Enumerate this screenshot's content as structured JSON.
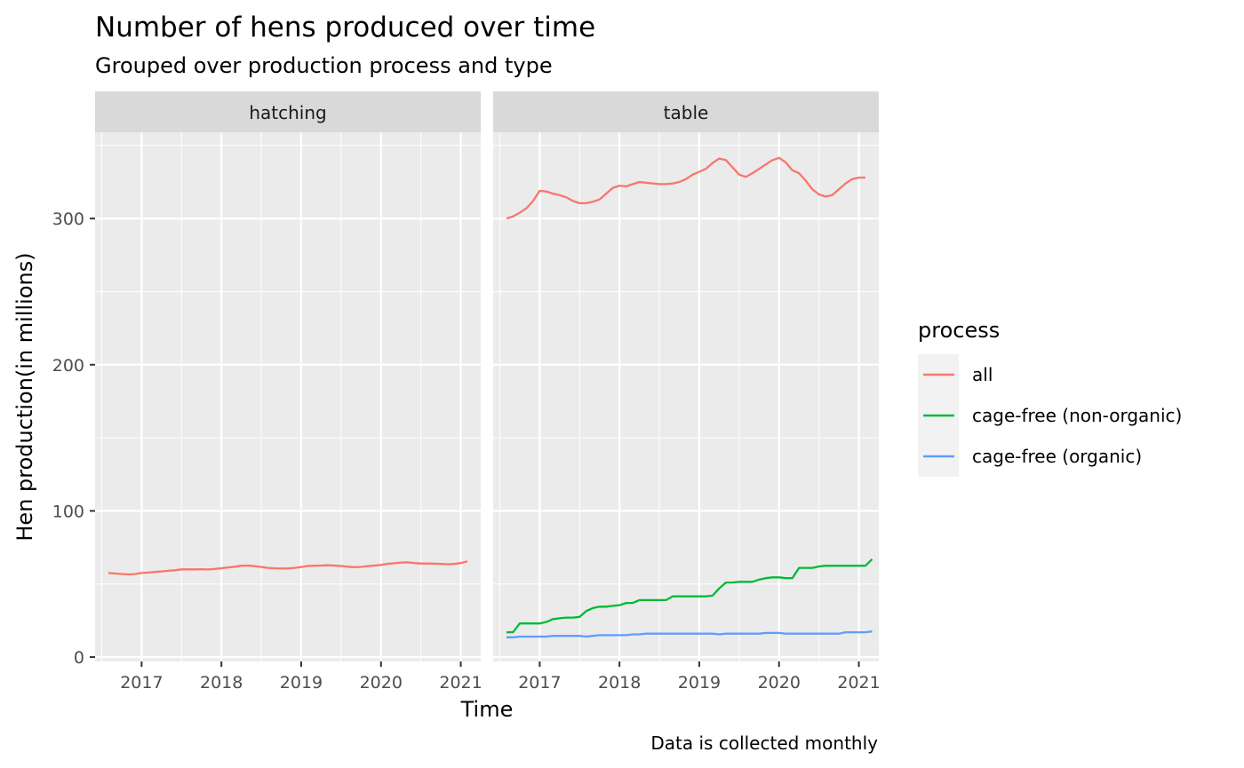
{
  "chart_data": {
    "type": "line",
    "title": "Number of hens produced over time",
    "subtitle": "Grouped over production process and type",
    "caption": "Data is collected monthly",
    "xlabel": "Time",
    "ylabel": "Hen production(in millions)",
    "x_ticks": [
      "2017",
      "2018",
      "2019",
      "2020",
      "2021"
    ],
    "y_ticks": [
      0,
      100,
      200,
      300
    ],
    "xlim": [
      "2016-06",
      "2021-04"
    ],
    "ylim": [
      -3,
      359
    ],
    "grid": true,
    "legend": {
      "title": "process",
      "position": "right",
      "entries": [
        "all",
        "cage-free (non-organic)",
        "cage-free (organic)"
      ]
    },
    "colors": {
      "all": "#F8766D",
      "cage-free (non-organic)": "#00BA38",
      "cage-free (organic)": "#619CFF",
      "panel_bg": "#EBEBEB",
      "strip_bg": "#D9D9D9"
    },
    "facets": [
      {
        "label": "hatching",
        "series": [
          {
            "name": "all",
            "x": [
              "2016-08",
              "2016-09",
              "2016-10",
              "2016-11",
              "2016-12",
              "2017-01",
              "2017-02",
              "2017-03",
              "2017-04",
              "2017-05",
              "2017-06",
              "2017-07",
              "2017-08",
              "2017-09",
              "2017-10",
              "2017-11",
              "2017-12",
              "2018-01",
              "2018-02",
              "2018-03",
              "2018-04",
              "2018-05",
              "2018-06",
              "2018-07",
              "2018-08",
              "2018-09",
              "2018-10",
              "2018-11",
              "2018-12",
              "2019-01",
              "2019-02",
              "2019-03",
              "2019-04",
              "2019-05",
              "2019-06",
              "2019-07",
              "2019-08",
              "2019-09",
              "2019-10",
              "2019-11",
              "2019-12",
              "2020-01",
              "2020-02",
              "2020-03",
              "2020-04",
              "2020-05",
              "2020-06",
              "2020-07",
              "2020-08",
              "2020-09",
              "2020-10",
              "2020-11",
              "2020-12",
              "2021-01",
              "2021-02"
            ],
            "y": [
              57.5,
              57.2,
              56.8,
              56.5,
              56.8,
              57.5,
              57.8,
              58.2,
              58.6,
              59.0,
              59.4,
              60.0,
              60.0,
              60.0,
              60.1,
              59.9,
              60.3,
              60.8,
              61.3,
              61.8,
              62.5,
              62.6,
              62.2,
              61.6,
              61.0,
              60.7,
              60.6,
              60.6,
              61.0,
              61.6,
              62.3,
              62.5,
              62.6,
              62.8,
              62.6,
              62.3,
              61.8,
              61.5,
              61.7,
              62.2,
              62.6,
              63.0,
              63.8,
              64.2,
              64.6,
              64.8,
              64.3,
              64.0,
              64.0,
              63.9,
              63.7,
              63.5,
              63.7,
              64.3,
              65.5
            ]
          }
        ]
      },
      {
        "label": "table",
        "series": [
          {
            "name": "all",
            "x": [
              "2016-08",
              "2016-09",
              "2016-10",
              "2016-11",
              "2016-12",
              "2017-01",
              "2017-02",
              "2017-03",
              "2017-04",
              "2017-05",
              "2017-06",
              "2017-07",
              "2017-08",
              "2017-09",
              "2017-10",
              "2017-11",
              "2017-12",
              "2018-01",
              "2018-02",
              "2018-03",
              "2018-04",
              "2018-05",
              "2018-06",
              "2018-07",
              "2018-08",
              "2018-09",
              "2018-10",
              "2018-11",
              "2018-12",
              "2019-01",
              "2019-02",
              "2019-03",
              "2019-04",
              "2019-05",
              "2019-06",
              "2019-07",
              "2019-08",
              "2019-09",
              "2019-10",
              "2019-11",
              "2019-12",
              "2020-01",
              "2020-02",
              "2020-03",
              "2020-04",
              "2020-05",
              "2020-06",
              "2020-07",
              "2020-08",
              "2020-09",
              "2020-10",
              "2020-11",
              "2020-12",
              "2021-01",
              "2021-02"
            ],
            "y": [
              300,
              301.5,
              304,
              307,
              312,
              319,
              318.5,
              317,
              316,
              314.5,
              312,
              310.5,
              310.5,
              311.5,
              313,
              317,
              321,
              322.5,
              322,
              323.5,
              325,
              324.5,
              324,
              323.5,
              323.5,
              324,
              325,
              327,
              330,
              332,
              334,
              338,
              341,
              340,
              335,
              330,
              328.5,
              331,
              334,
              337,
              340,
              341.5,
              338.5,
              333,
              331,
              326,
              320,
              316.5,
              315,
              316,
              320,
              324,
              327,
              328,
              328
            ]
          },
          {
            "name": "cage-free (non-organic)",
            "x": [
              "2016-08",
              "2016-09",
              "2016-10",
              "2016-11",
              "2016-12",
              "2017-01",
              "2017-02",
              "2017-03",
              "2017-04",
              "2017-05",
              "2017-06",
              "2017-07",
              "2017-08",
              "2017-09",
              "2017-10",
              "2017-11",
              "2017-12",
              "2018-01",
              "2018-02",
              "2018-03",
              "2018-04",
              "2018-05",
              "2018-06",
              "2018-07",
              "2018-08",
              "2018-09",
              "2018-10",
              "2018-11",
              "2018-12",
              "2019-01",
              "2019-02",
              "2019-03",
              "2019-04",
              "2019-05",
              "2019-06",
              "2019-07",
              "2019-08",
              "2019-09",
              "2019-10",
              "2019-11",
              "2019-12",
              "2020-01",
              "2020-02",
              "2020-03",
              "2020-04",
              "2020-05",
              "2020-06",
              "2020-07",
              "2020-08",
              "2020-09",
              "2020-10",
              "2020-11",
              "2020-12",
              "2021-01",
              "2021-02",
              "2021-03"
            ],
            "y": [
              17,
              17,
              23,
              23,
              23,
              23,
              24,
              26,
              26.5,
              27,
              27,
              27.5,
              31.5,
              33.5,
              34.5,
              34.5,
              35,
              35.5,
              37,
              37,
              39,
              39,
              39,
              39,
              39,
              41.5,
              41.5,
              41.5,
              41.5,
              41.5,
              41.5,
              42,
              47,
              51,
              51,
              51.5,
              51.5,
              51.5,
              53,
              54,
              54.5,
              54.5,
              54,
              54,
              61,
              61,
              61,
              62,
              62.5,
              62.5,
              62.5,
              62.5,
              62.5,
              62.5,
              62.5,
              67
            ]
          },
          {
            "name": "cage-free (organic)",
            "x": [
              "2016-08",
              "2016-09",
              "2016-10",
              "2016-11",
              "2016-12",
              "2017-01",
              "2017-02",
              "2017-03",
              "2017-04",
              "2017-05",
              "2017-06",
              "2017-07",
              "2017-08",
              "2017-09",
              "2017-10",
              "2017-11",
              "2017-12",
              "2018-01",
              "2018-02",
              "2018-03",
              "2018-04",
              "2018-05",
              "2018-06",
              "2018-07",
              "2018-08",
              "2018-09",
              "2018-10",
              "2018-11",
              "2018-12",
              "2019-01",
              "2019-02",
              "2019-03",
              "2019-04",
              "2019-05",
              "2019-06",
              "2019-07",
              "2019-08",
              "2019-09",
              "2019-10",
              "2019-11",
              "2019-12",
              "2020-01",
              "2020-02",
              "2020-03",
              "2020-04",
              "2020-05",
              "2020-06",
              "2020-07",
              "2020-08",
              "2020-09",
              "2020-10",
              "2020-11",
              "2020-12",
              "2021-01",
              "2021-02",
              "2021-03"
            ],
            "y": [
              13.5,
              13.5,
              14,
              14,
              14,
              14,
              14,
              14.5,
              14.5,
              14.5,
              14.5,
              14.5,
              14,
              14.5,
              15,
              15,
              15,
              15,
              15,
              15.5,
              15.5,
              16,
              16,
              16,
              16,
              16,
              16,
              16,
              16,
              16,
              16,
              16,
              15.5,
              16,
              16,
              16,
              16,
              16,
              16,
              16.5,
              16.5,
              16.5,
              16,
              16,
              16,
              16,
              16,
              16,
              16,
              16,
              16,
              17,
              17,
              17,
              17,
              17.5
            ]
          }
        ]
      }
    ]
  }
}
